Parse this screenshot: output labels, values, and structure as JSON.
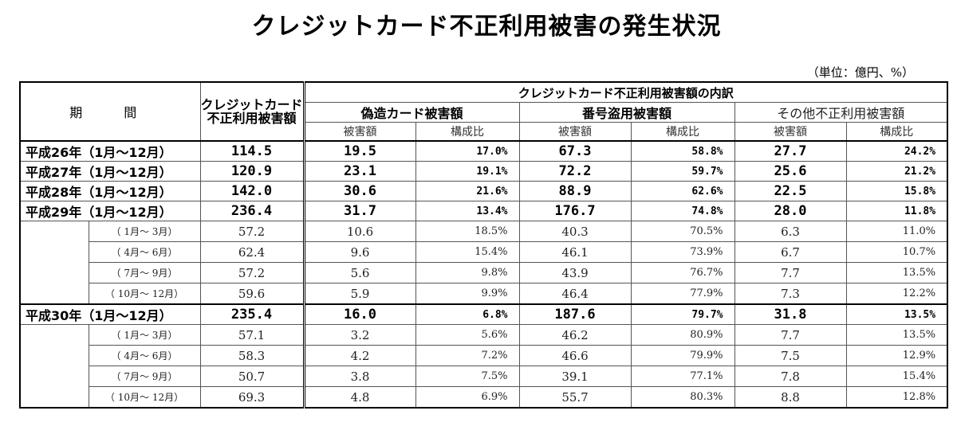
{
  "title": "クレジットカード不正利用被害の発生状況",
  "unit": "（単位：億円、%）",
  "header": {
    "period": "期　間",
    "total": "クレジットカード不正利用被害額",
    "breakdown": "クレジットカード不正利用被害額の内訳",
    "categories": [
      "偽造カード被害額",
      "番号盗用被害額",
      "その他不正利用被害額"
    ],
    "sub_amount": "被害額",
    "sub_ratio": "構成比"
  },
  "rows": [
    {
      "type": "year",
      "label": "平成26年（1月～12月）",
      "total": "114.5",
      "forged": "19.5",
      "forged_pct": "17.0%",
      "stolen": "67.3",
      "stolen_pct": "58.8%",
      "other": "27.7",
      "other_pct": "24.2%"
    },
    {
      "type": "year",
      "label": "平成27年（1月～12月）",
      "total": "120.9",
      "forged": "23.1",
      "forged_pct": "19.1%",
      "stolen": "72.2",
      "stolen_pct": "59.7%",
      "other": "25.6",
      "other_pct": "21.2%"
    },
    {
      "type": "year",
      "label": "平成28年（1月～12月）",
      "total": "142.0",
      "forged": "30.6",
      "forged_pct": "21.6%",
      "stolen": "88.9",
      "stolen_pct": "62.6%",
      "other": "22.5",
      "other_pct": "15.8%"
    },
    {
      "type": "year",
      "label": "平成29年（1月～12月）",
      "total": "236.4",
      "forged": "31.7",
      "forged_pct": "13.4%",
      "stolen": "176.7",
      "stolen_pct": "74.8%",
      "other": "28.0",
      "other_pct": "11.8%"
    },
    {
      "type": "qtr",
      "label": "（ 1月～ 3月）",
      "total": "57.2",
      "forged": "10.6",
      "forged_pct": "18.5%",
      "stolen": "40.3",
      "stolen_pct": "70.5%",
      "other": "6.3",
      "other_pct": "11.0%"
    },
    {
      "type": "qtr",
      "label": "（ 4月～ 6月）",
      "total": "62.4",
      "forged": "9.6",
      "forged_pct": "15.4%",
      "stolen": "46.1",
      "stolen_pct": "73.9%",
      "other": "6.7",
      "other_pct": "10.7%"
    },
    {
      "type": "qtr",
      "label": "（ 7月～ 9月）",
      "total": "57.2",
      "forged": "5.6",
      "forged_pct": "9.8%",
      "stolen": "43.9",
      "stolen_pct": "76.7%",
      "other": "7.7",
      "other_pct": "13.5%"
    },
    {
      "type": "qtr",
      "label": "（ 10月～ 12月）",
      "total": "59.6",
      "forged": "5.9",
      "forged_pct": "9.9%",
      "stolen": "46.4",
      "stolen_pct": "77.9%",
      "other": "7.3",
      "other_pct": "12.2%"
    },
    {
      "type": "year",
      "label": "平成30年（1月～12月）",
      "total": "235.4",
      "forged": "16.0",
      "forged_pct": "6.8%",
      "stolen": "187.6",
      "stolen_pct": "79.7%",
      "other": "31.8",
      "other_pct": "13.5%"
    },
    {
      "type": "qtr",
      "label": "（ 1月～ 3月）",
      "total": "57.1",
      "forged": "3.2",
      "forged_pct": "5.6%",
      "stolen": "46.2",
      "stolen_pct": "80.9%",
      "other": "7.7",
      "other_pct": "13.5%"
    },
    {
      "type": "qtr",
      "label": "（ 4月～ 6月）",
      "total": "58.3",
      "forged": "4.2",
      "forged_pct": "7.2%",
      "stolen": "46.6",
      "stolen_pct": "79.9%",
      "other": "7.5",
      "other_pct": "12.9%"
    },
    {
      "type": "qtr",
      "label": "（ 7月～ 9月）",
      "total": "50.7",
      "forged": "3.8",
      "forged_pct": "7.5%",
      "stolen": "39.1",
      "stolen_pct": "77.1%",
      "other": "7.8",
      "other_pct": "15.4%"
    },
    {
      "type": "qtr",
      "label": "（ 10月～ 12月）",
      "total": "69.3",
      "forged": "4.8",
      "forged_pct": "6.9%",
      "stolen": "55.7",
      "stolen_pct": "80.3%",
      "other": "8.8",
      "other_pct": "12.8%"
    }
  ]
}
